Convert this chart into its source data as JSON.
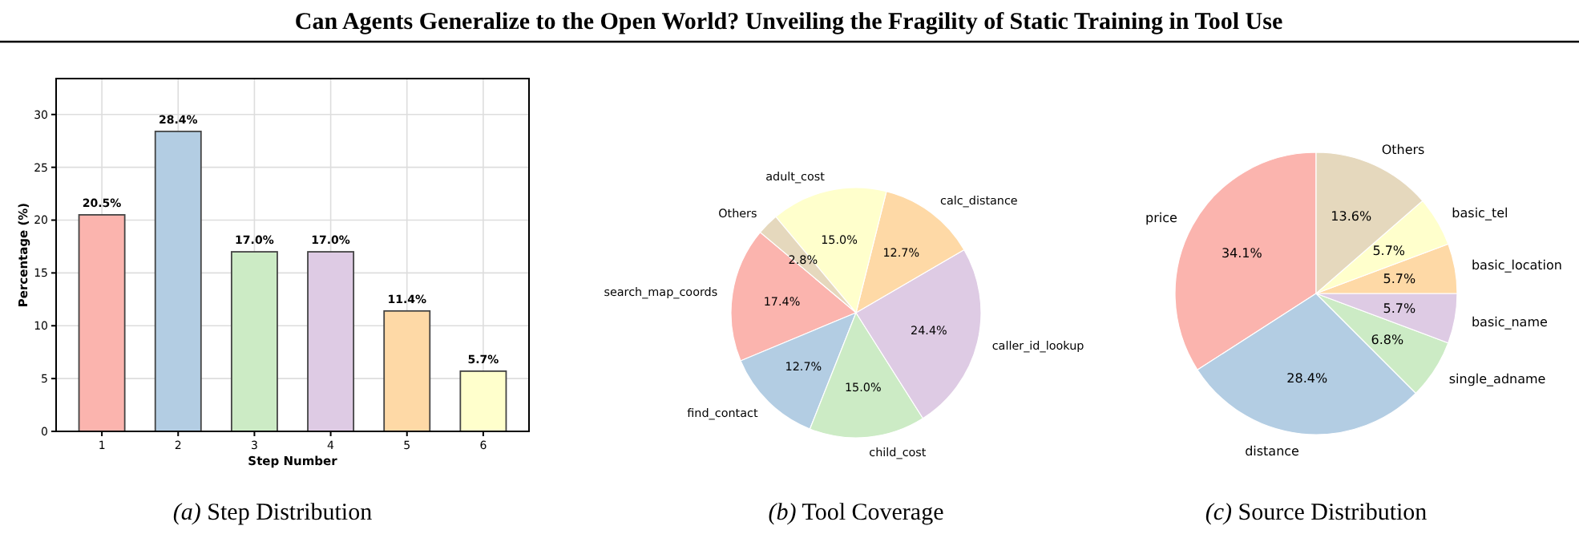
{
  "chart_data": [
    {
      "type": "bar",
      "title": "Can Agents Generalize to the Open World? Unveiling the Fragility of Static Training in Tool Use",
      "xlabel": "Step Number",
      "ylabel": "Percentage (%)",
      "categories": [
        "1",
        "2",
        "3",
        "4",
        "5",
        "6"
      ],
      "values": [
        20.5,
        28.4,
        17.0,
        17.0,
        11.4,
        5.7
      ],
      "value_labels": [
        "20.5%",
        "28.4%",
        "17.0%",
        "17.0%",
        "11.4%",
        "5.7%"
      ],
      "colors": [
        "#fbb4ae",
        "#b3cde3",
        "#ccebc5",
        "#decbe4",
        "#fed9a6",
        "#ffffcc"
      ],
      "ylim": [
        0,
        33.4
      ],
      "yticks": [
        0,
        5,
        10,
        15,
        20,
        25,
        30
      ],
      "grid": true,
      "annotations": [
        "(a) Step Distribution"
      ]
    },
    {
      "type": "pie",
      "categories": [
        "search_map_coords",
        "find_contact",
        "child_cost",
        "caller_id_lookup",
        "calc_distance",
        "adult_cost",
        "Others"
      ],
      "values": [
        17.4,
        12.7,
        15.0,
        24.4,
        12.7,
        15.0,
        2.8
      ],
      "value_labels": [
        "17.4%",
        "12.7%",
        "15.0%",
        "24.4%",
        "12.7%",
        "15.0%",
        "2.8%"
      ],
      "colors": [
        "#fbb4ae",
        "#b3cde3",
        "#ccebc5",
        "#decbe4",
        "#fed9a6",
        "#ffffcc",
        "#e5d8bd"
      ],
      "annotations": [
        "(b) Tool Coverage"
      ]
    },
    {
      "type": "pie",
      "categories": [
        "price",
        "distance",
        "single_adname",
        "basic_name",
        "basic_location",
        "basic_tel",
        "Others"
      ],
      "values": [
        34.1,
        28.4,
        6.8,
        5.7,
        5.7,
        5.7,
        13.6
      ],
      "value_labels": [
        "34.1%",
        "28.4%",
        "6.8%",
        "5.7%",
        "5.7%",
        "5.7%",
        "13.6%"
      ],
      "colors": [
        "#fbb4ae",
        "#b3cde3",
        "#ccebc5",
        "#decbe4",
        "#fed9a6",
        "#ffffcc",
        "#e5d8bd"
      ],
      "annotations": [
        "(c) Source Distribution"
      ]
    }
  ]
}
